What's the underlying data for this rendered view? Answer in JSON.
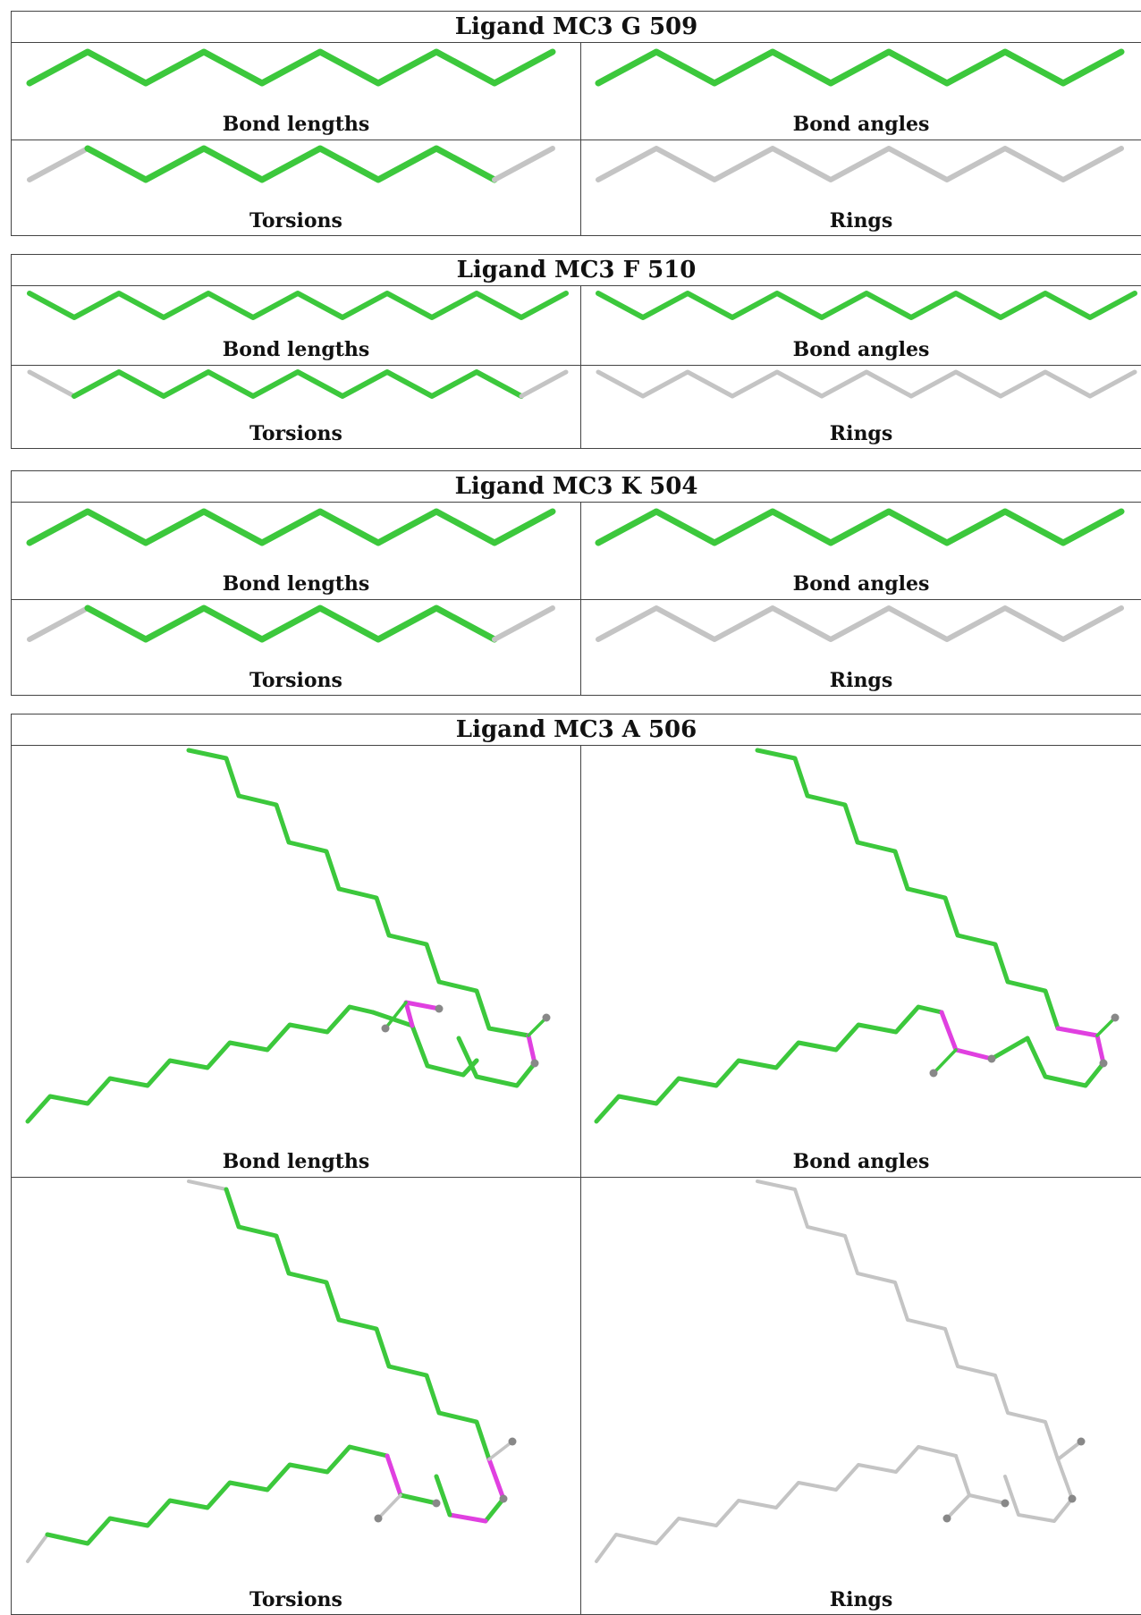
{
  "colors": {
    "ok": "#3cc83c",
    "outlier": "#e040e0",
    "na": "#c4c4c4",
    "atom": "#888888"
  },
  "panel_labels": {
    "bonds": "Bond lengths",
    "angles": "Bond angles",
    "torsions": "Torsions",
    "rings": "Rings"
  },
  "ligands": [
    {
      "title": "Ligand MC3 G 509"
    },
    {
      "title": "Ligand MC3 F 510"
    },
    {
      "title": "Ligand MC3 K 504"
    },
    {
      "title": "Ligand MC3 A 506"
    }
  ]
}
